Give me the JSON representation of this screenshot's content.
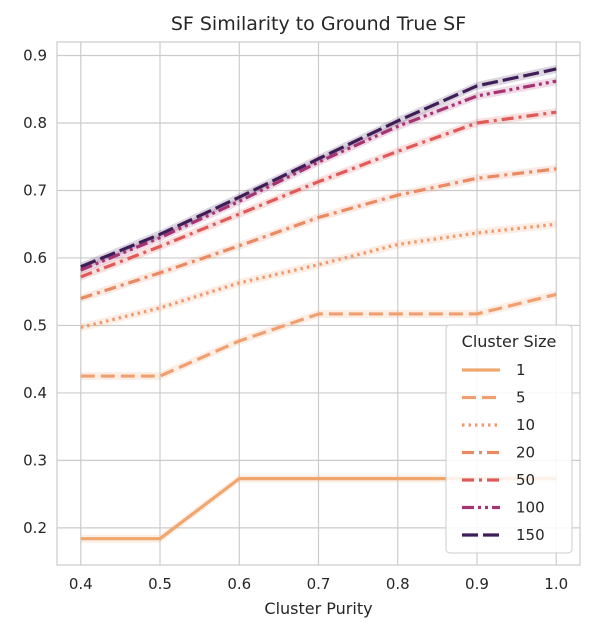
{
  "chart_data": {
    "type": "line",
    "title": "SF Similarity to Ground True SF",
    "xlabel": "Cluster Purity",
    "ylabel": "",
    "x": [
      0.4,
      0.5,
      0.6,
      0.7,
      0.8,
      0.9,
      1.0
    ],
    "xticks": [
      "0.4",
      "0.5",
      "0.6",
      "0.7",
      "0.8",
      "0.9",
      "1.0"
    ],
    "yticks": [
      "0.2",
      "0.3",
      "0.4",
      "0.5",
      "0.6",
      "0.7",
      "0.8",
      "0.9"
    ],
    "xlim": [
      0.37,
      1.03
    ],
    "ylim": [
      0.145,
      0.92
    ],
    "grid": true,
    "legend": {
      "title": "Cluster Size",
      "position": "lower-right"
    },
    "series": [
      {
        "name": "1",
        "color": "#f0a66f",
        "dash": "solid",
        "values": [
          0.184,
          0.184,
          0.273,
          0.273,
          0.273,
          0.273,
          0.273
        ]
      },
      {
        "name": "5",
        "color": "#f0a070",
        "dash": "dashed",
        "values": [
          0.425,
          0.425,
          0.477,
          0.517,
          0.517,
          0.517,
          0.546
        ]
      },
      {
        "name": "10",
        "color": "#ee9a6e",
        "dash": "dotted",
        "values": [
          0.497,
          0.526,
          0.563,
          0.59,
          0.62,
          0.637,
          0.65
        ]
      },
      {
        "name": "20",
        "color": "#ea8a62",
        "dash": "dashdot",
        "values": [
          0.54,
          0.578,
          0.618,
          0.66,
          0.693,
          0.718,
          0.732
        ]
      },
      {
        "name": "50",
        "color": "#e05a58",
        "dash": "dashdot",
        "values": [
          0.572,
          0.617,
          0.665,
          0.713,
          0.758,
          0.8,
          0.816
        ]
      },
      {
        "name": "100",
        "color": "#a63473",
        "dash": "dashdotdot",
        "values": [
          0.582,
          0.63,
          0.684,
          0.742,
          0.795,
          0.84,
          0.862
        ]
      },
      {
        "name": "150",
        "color": "#3f1d57",
        "dash": "longdash",
        "values": [
          0.587,
          0.635,
          0.69,
          0.747,
          0.803,
          0.855,
          0.88
        ]
      }
    ]
  }
}
